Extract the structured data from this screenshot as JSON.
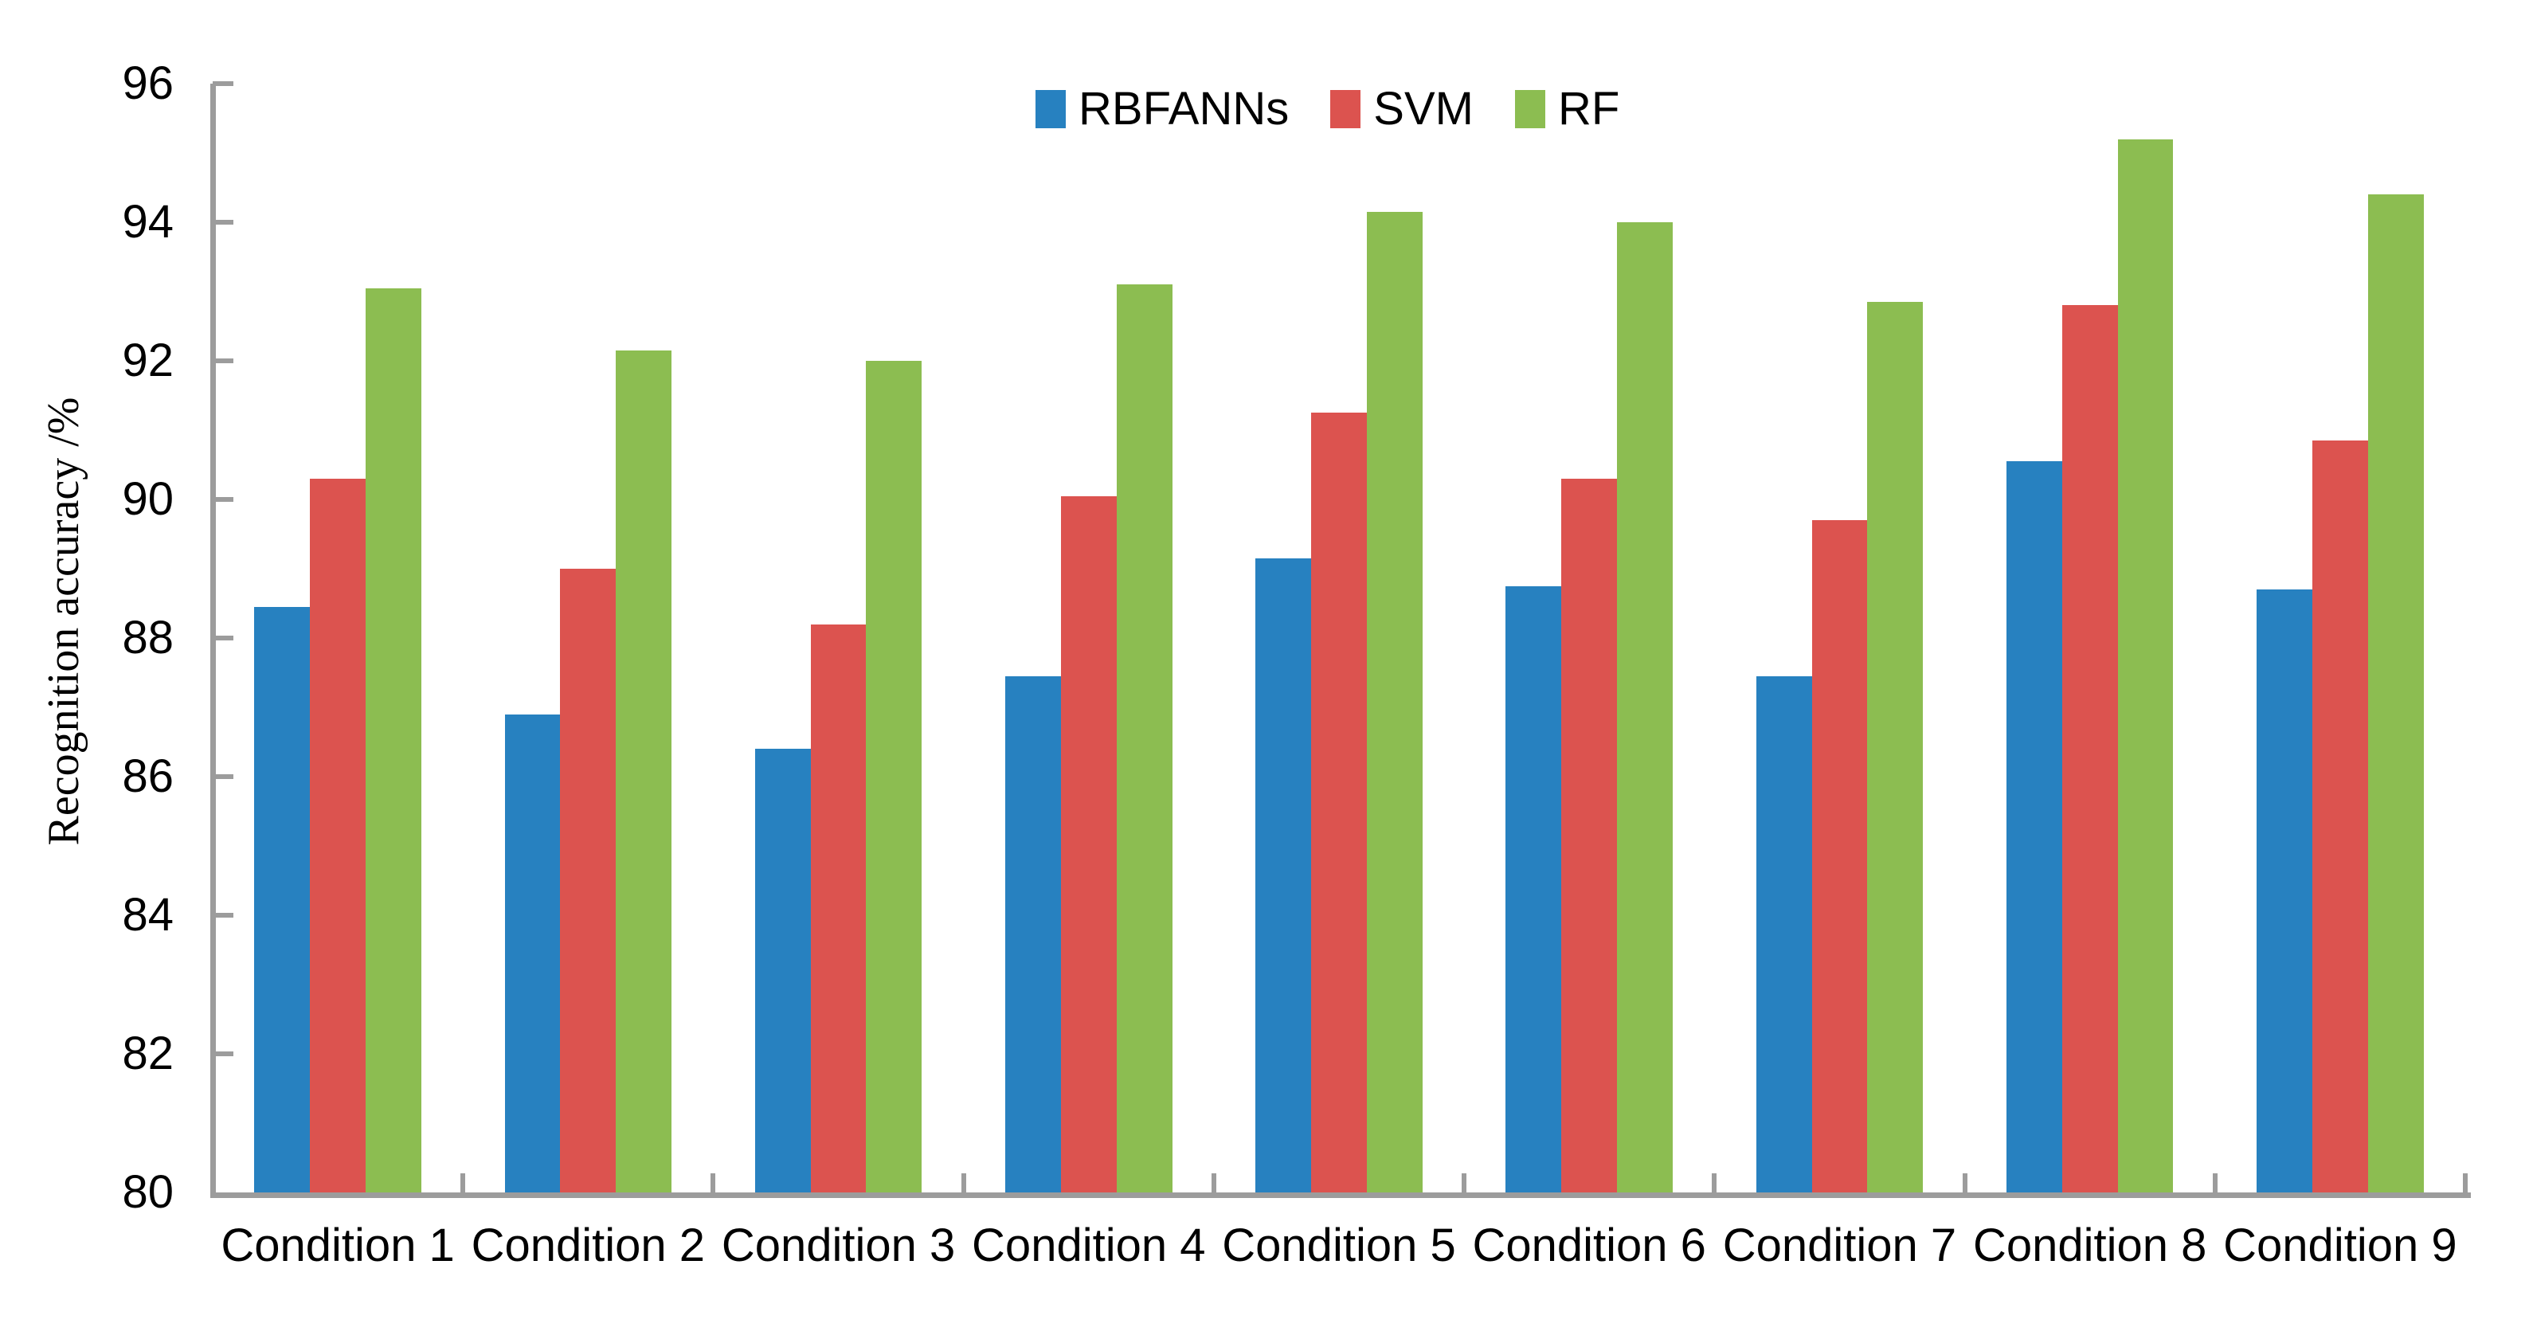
{
  "chart_data": {
    "type": "bar",
    "categories": [
      "Condition 1",
      "Condition 2",
      "Condition 3",
      "Condition 4",
      "Condition 5",
      "Condition 6",
      "Condition 7",
      "Condition 8",
      "Condition 9"
    ],
    "series": [
      {
        "name": "RBFANNs",
        "color": "#2781C0",
        "values": [
          88.45,
          86.9,
          86.4,
          87.45,
          89.15,
          88.75,
          87.45,
          90.55,
          88.7
        ]
      },
      {
        "name": "SVM",
        "color": "#DC534F",
        "values": [
          90.3,
          89.0,
          88.2,
          90.05,
          91.25,
          90.3,
          89.7,
          92.8,
          90.85
        ]
      },
      {
        "name": "RF",
        "color": "#8CBD51",
        "values": [
          93.05,
          92.15,
          92.0,
          93.1,
          94.15,
          94.0,
          92.85,
          95.2,
          94.4
        ]
      }
    ],
    "xlabel": "",
    "ylabel": "Recognition accuracy /%",
    "ylim": [
      80,
      96
    ],
    "yticks": [
      80,
      82,
      84,
      86,
      88,
      90,
      92,
      94,
      96
    ],
    "legend": [
      "RBFANNs",
      "SVM",
      "RF"
    ],
    "legend_position": "top-center",
    "grid": false,
    "axis_color": "#9C9C9C",
    "text_color": "#000000",
    "background": "#FFFFFF"
  }
}
